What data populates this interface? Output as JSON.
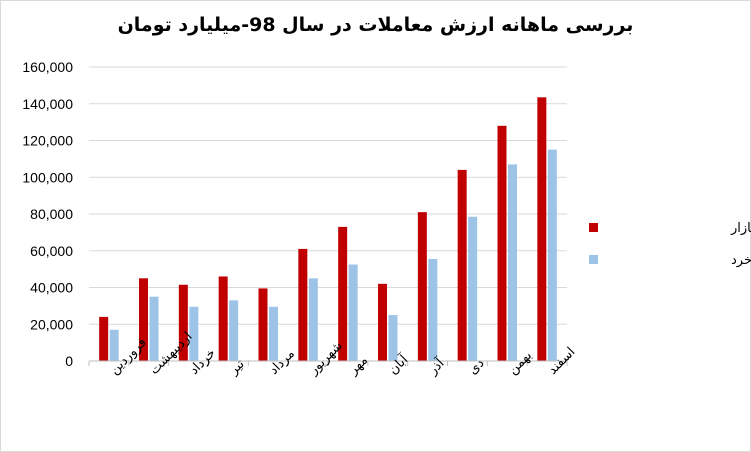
{
  "chart_data": {
    "type": "bar",
    "title": "بررسی ماهانه ارزش معاملات در سال 98-میلیارد تومان",
    "categories": [
      "فروردین",
      "اردیبهشت",
      "خرداد",
      "تیر",
      "مرداد",
      "شهریور",
      "مهر",
      "آبان",
      "آذر",
      "دی",
      "بهمن",
      "اسفند"
    ],
    "series": [
      {
        "name": "ارزش کل بازار",
        "color": "#c00000",
        "values": [
          24000,
          45000,
          41500,
          46000,
          39500,
          61000,
          73000,
          42000,
          81000,
          104000,
          128000,
          143500
        ]
      },
      {
        "name": "ارزش معاملات خرد",
        "color": "#9dc3e6",
        "values": [
          17000,
          35000,
          29500,
          33000,
          29500,
          45000,
          52500,
          25000,
          55500,
          78500,
          107000,
          115000
        ]
      }
    ],
    "ylim": [
      0,
      160000
    ],
    "yticks": [
      "0",
      "20,000",
      "40,000",
      "60,000",
      "80,000",
      "100,000",
      "120,000",
      "140,000",
      "160,000"
    ],
    "grid": true,
    "legend_position": "right"
  }
}
